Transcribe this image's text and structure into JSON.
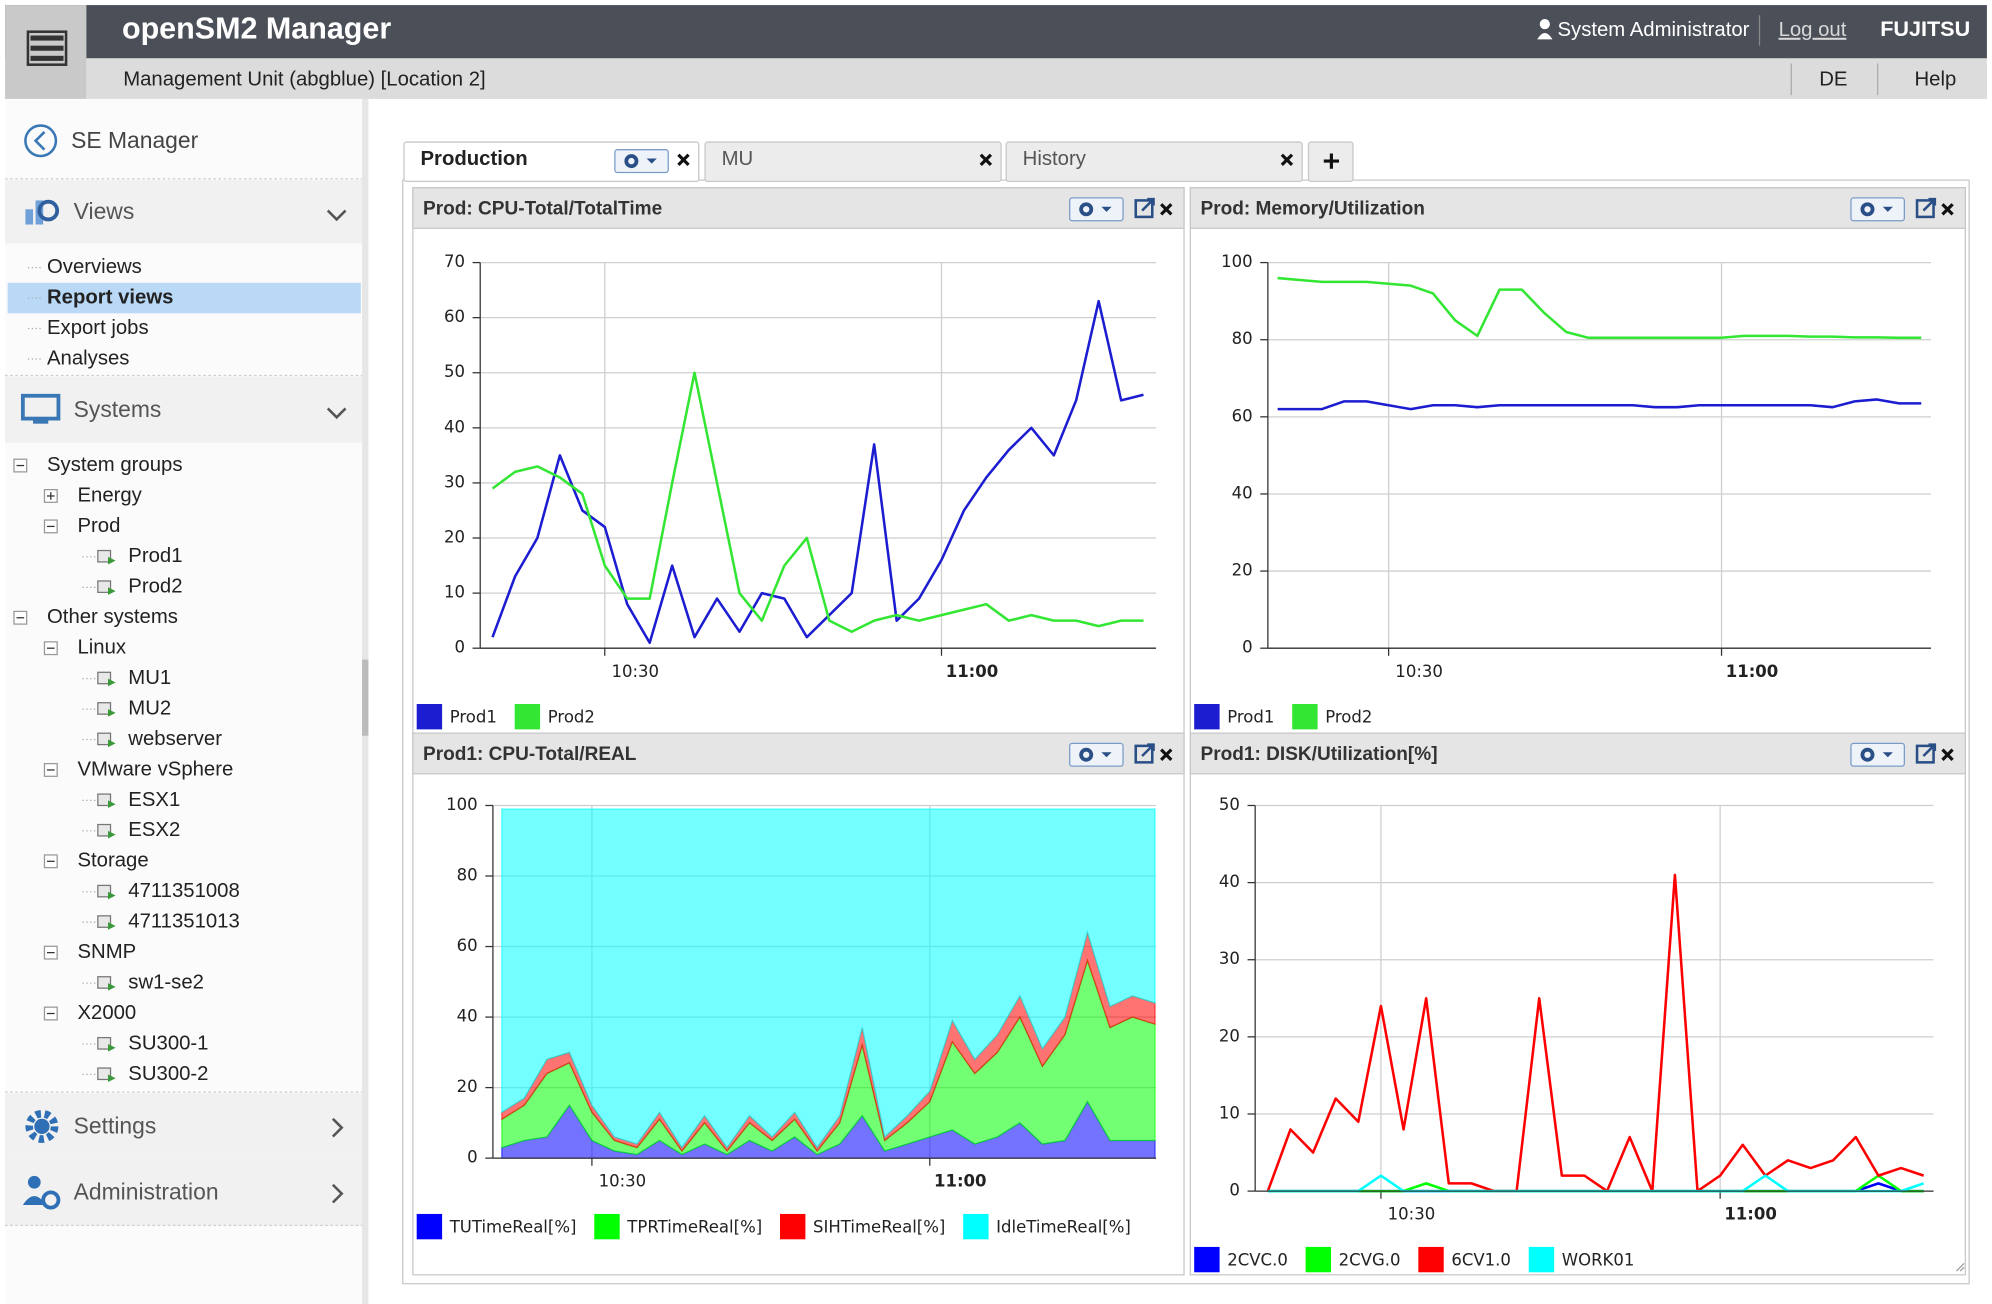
{
  "header": {
    "title": "openSM2 Manager",
    "user": "System Administrator",
    "logout": "Log out",
    "brand": "FUJITSU",
    "context": "Management Unit (abgblue) [Location 2]",
    "language": "DE",
    "help": "Help"
  },
  "sidebar": {
    "back": "SE Manager",
    "views": {
      "title": "Views",
      "items": [
        "Overviews",
        "Report views",
        "Export jobs",
        "Analyses"
      ]
    },
    "systems": {
      "title": "Systems",
      "tree": [
        {
          "label": "System groups",
          "children": [
            {
              "label": "Energy",
              "collapsed": true
            },
            {
              "label": "Prod",
              "children": [
                {
                  "label": "Prod1"
                },
                {
                  "label": "Prod2"
                }
              ]
            }
          ]
        },
        {
          "label": "Other systems",
          "children": [
            {
              "label": "Linux",
              "children": [
                {
                  "label": "MU1"
                },
                {
                  "label": "MU2"
                },
                {
                  "label": "webserver"
                }
              ]
            },
            {
              "label": "VMware vSphere",
              "children": [
                {
                  "label": "ESX1"
                },
                {
                  "label": "ESX2"
                }
              ]
            },
            {
              "label": "Storage",
              "children": [
                {
                  "label": "4711351008"
                },
                {
                  "label": "4711351013"
                }
              ]
            },
            {
              "label": "SNMP",
              "children": [
                {
                  "label": "sw1-se2"
                }
              ]
            },
            {
              "label": "X2000",
              "children": [
                {
                  "label": "SU300-1"
                },
                {
                  "label": "SU300-2"
                }
              ]
            }
          ]
        }
      ]
    },
    "settings": "Settings",
    "administration": "Administration"
  },
  "tabs": [
    "Production",
    "MU",
    "History"
  ],
  "chart_data": [
    {
      "type": "line",
      "title": "Prod: CPU-Total/TotalTime",
      "categories": [
        null,
        null,
        null,
        null,
        null,
        "10:30",
        null,
        null,
        null,
        null,
        null,
        null,
        null,
        null,
        null,
        null,
        null,
        null,
        null,
        null,
        "11:00",
        null,
        null,
        null,
        null,
        null,
        null,
        null,
        null,
        null
      ],
      "series": [
        {
          "name": "Prod1",
          "color": "#1c1cd0",
          "values": [
            2,
            13,
            20,
            35,
            25,
            22,
            8,
            1,
            15,
            2,
            9,
            3,
            10,
            9,
            2,
            6,
            10,
            37,
            5,
            9,
            16,
            25,
            31,
            36,
            40,
            35,
            45,
            63,
            45,
            46
          ]
        },
        {
          "name": "Prod2",
          "color": "#33e633",
          "values": [
            29,
            32,
            33,
            31,
            28,
            15,
            9,
            9,
            30,
            50,
            30,
            10,
            5,
            15,
            20,
            5,
            3,
            5,
            6,
            5,
            6,
            7,
            8,
            5,
            6,
            5,
            5,
            4,
            5,
            5
          ]
        }
      ],
      "ylim": [
        0,
        70
      ],
      "yticks": [
        0,
        10,
        20,
        30,
        40,
        50,
        60,
        70
      ],
      "grid": true
    },
    {
      "type": "line",
      "title": "Prod: Memory/Utilization",
      "categories": [
        null,
        null,
        null,
        null,
        null,
        "10:30",
        null,
        null,
        null,
        null,
        null,
        null,
        null,
        null,
        null,
        null,
        null,
        null,
        null,
        null,
        "11:00",
        null,
        null,
        null,
        null,
        null,
        null,
        null,
        null,
        null
      ],
      "series": [
        {
          "name": "Prod1",
          "color": "#1c1cd0",
          "values": [
            62,
            62,
            62,
            64,
            64,
            63,
            62,
            63,
            63,
            62.5,
            63,
            63,
            63,
            63,
            63,
            63,
            63,
            62.5,
            62.5,
            63,
            63,
            63,
            63,
            63,
            63,
            62.5,
            64,
            64.5,
            63.5,
            63.5
          ]
        },
        {
          "name": "Prod2",
          "color": "#33e633",
          "values": [
            96,
            95.5,
            95,
            95,
            95,
            94.5,
            94,
            92,
            85,
            81,
            93,
            93,
            87,
            82,
            80.5,
            80.5,
            80.5,
            80.5,
            80.5,
            80.5,
            80.5,
            81,
            81,
            81,
            80.8,
            80.8,
            80.6,
            80.6,
            80.5,
            80.5
          ]
        }
      ],
      "ylim": [
        0,
        100
      ],
      "yticks": [
        0,
        20,
        40,
        60,
        80,
        100
      ],
      "grid": true
    },
    {
      "type": "area",
      "stacked": true,
      "title": "Prod1: CPU-Total/REAL",
      "categories": [
        null,
        null,
        null,
        null,
        "10:30",
        null,
        null,
        null,
        null,
        null,
        null,
        null,
        null,
        null,
        null,
        null,
        null,
        null,
        null,
        "11:00",
        null,
        null,
        null,
        null,
        null,
        null,
        null,
        null,
        null,
        null
      ],
      "series": [
        {
          "name": "TUTimeReal[%]",
          "color": "#0000ff",
          "values": [
            3,
            5,
            6,
            15,
            5,
            2,
            1,
            5,
            1,
            4,
            1,
            5,
            2,
            6,
            1,
            4,
            12,
            2,
            4,
            6,
            8,
            4,
            6,
            10,
            4,
            5,
            16,
            5,
            5,
            5
          ]
        },
        {
          "name": "TPRTimeReal[%]",
          "color": "#00ff00",
          "values": [
            8,
            10,
            18,
            12,
            8,
            3,
            2,
            6,
            1,
            6,
            1,
            5,
            3,
            5,
            1,
            6,
            20,
            3,
            6,
            10,
            25,
            20,
            24,
            30,
            22,
            30,
            40,
            32,
            35,
            33
          ]
        },
        {
          "name": "SIHTimeReal[%]",
          "color": "#ff0000",
          "values": [
            2,
            2,
            4,
            3,
            2,
            1,
            1,
            2,
            1,
            2,
            1,
            2,
            1,
            2,
            1,
            2,
            5,
            1,
            2,
            3,
            6,
            4,
            5,
            6,
            5,
            5,
            8,
            6,
            6,
            6
          ]
        },
        {
          "name": "IdleTimeReal[%]",
          "color": "#00ffff",
          "values": [
            86,
            82,
            71,
            69,
            84,
            93,
            95,
            86,
            96,
            87,
            96,
            87,
            93,
            86,
            96,
            87,
            62,
            93,
            87,
            80,
            60,
            71,
            64,
            53,
            68,
            59,
            35,
            56,
            53,
            55
          ]
        }
      ],
      "ylim": [
        0,
        100
      ],
      "yticks": [
        0,
        20,
        40,
        60,
        80,
        100
      ],
      "grid": true
    },
    {
      "type": "line",
      "title": "Prod1: DISK/Utilization[%]",
      "categories": [
        null,
        null,
        null,
        null,
        null,
        "10:30",
        null,
        null,
        null,
        null,
        null,
        null,
        null,
        null,
        null,
        null,
        null,
        null,
        null,
        null,
        "11:00",
        null,
        null,
        null,
        null,
        null,
        null,
        null,
        null,
        null
      ],
      "series": [
        {
          "name": "2CVC.0",
          "color": "#0000ff",
          "values": [
            0,
            0,
            0,
            0,
            0,
            0,
            0,
            0,
            0,
            0,
            0,
            0,
            0,
            0,
            0,
            0,
            0,
            0,
            0,
            0,
            0,
            0,
            0,
            0,
            0,
            0,
            0,
            1,
            0,
            0
          ]
        },
        {
          "name": "2CVG.0",
          "color": "#00ff00",
          "values": [
            0,
            0,
            0,
            0,
            0,
            0,
            0,
            1,
            0,
            0,
            0,
            0,
            0,
            0,
            0,
            0,
            0,
            0,
            0,
            0,
            0,
            0,
            0,
            0,
            0,
            0,
            0,
            2,
            0,
            0
          ]
        },
        {
          "name": "6CV1.0",
          "color": "#ff0000",
          "values": [
            0,
            8,
            5,
            12,
            9,
            24,
            8,
            25,
            1,
            1,
            0,
            0,
            25,
            2,
            2,
            0,
            7,
            0,
            41,
            0,
            2,
            6,
            2,
            4,
            3,
            4,
            7,
            2,
            3,
            2
          ]
        },
        {
          "name": "WORK01",
          "color": "#00ffff",
          "values": [
            0,
            0,
            0,
            0,
            0,
            2,
            0,
            0,
            0,
            0,
            0,
            0,
            0,
            0,
            0,
            0,
            0,
            0,
            0,
            0,
            0,
            0,
            2,
            0,
            0,
            0,
            0,
            0,
            0,
            1
          ]
        }
      ],
      "ylim": [
        0,
        50
      ],
      "yticks": [
        0,
        10,
        20,
        30,
        40,
        50
      ],
      "grid": true
    }
  ]
}
